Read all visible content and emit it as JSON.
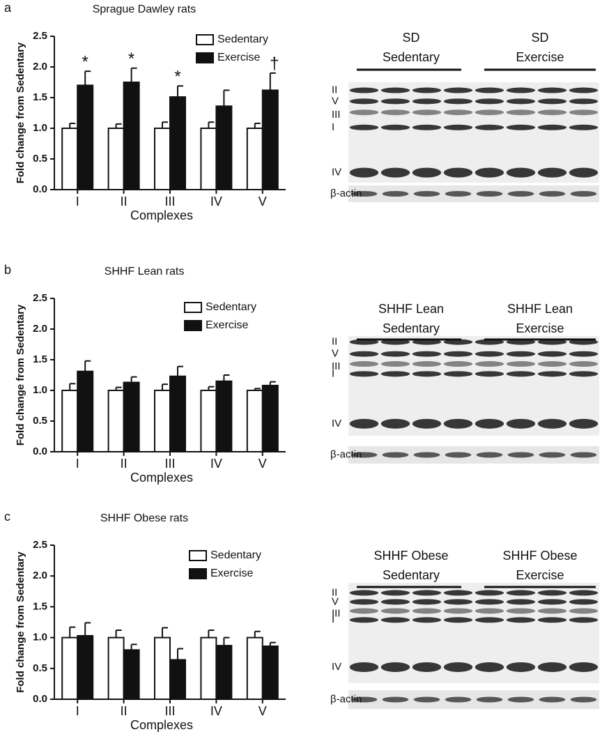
{
  "chart_data": [
    {
      "type": "bar",
      "panel": "a",
      "title": "Sprague Dawley rats",
      "ylabel": "Fold change from Sedentary",
      "xlabel": "Complexes",
      "categories": [
        "I",
        "II",
        "III",
        "IV",
        "V"
      ],
      "series": [
        {
          "name": "Sedentary",
          "color": "#ffffff",
          "values": [
            1.0,
            1.0,
            1.0,
            1.0,
            1.0
          ],
          "errors": [
            0.08,
            0.07,
            0.1,
            0.1,
            0.08
          ]
        },
        {
          "name": "Exercise",
          "color": "#111111",
          "values": [
            1.7,
            1.75,
            1.51,
            1.36,
            1.62
          ],
          "errors": [
            0.23,
            0.23,
            0.18,
            0.26,
            0.28
          ],
          "markers": [
            "*",
            "*",
            "*",
            null,
            "†"
          ]
        }
      ],
      "ylim": [
        0,
        2.5
      ],
      "yticks": [
        {
          "value": 0,
          "label": "0.0"
        },
        0.5,
        {
          "value": 1,
          "label": "1.0"
        },
        1.5,
        {
          "value": 2,
          "label": "2.0"
        },
        2.5
      ],
      "legend": "upper right",
      "blot": {
        "groups": [
          [
            "SD",
            "Sedentary"
          ],
          [
            "SD",
            "Exercise"
          ]
        ],
        "bands": [
          "II",
          "V",
          "III",
          "I",
          "IV"
        ],
        "loading": "β-actin"
      }
    },
    {
      "type": "bar",
      "panel": "b",
      "title": "SHHF Lean rats",
      "ylabel": "Fold change from Sedentary",
      "xlabel": "Complexes",
      "categories": [
        "I",
        "II",
        "III",
        "IV",
        "V"
      ],
      "series": [
        {
          "name": "Sedentary",
          "color": "#ffffff",
          "values": [
            1.0,
            1.0,
            1.0,
            1.0,
            1.0
          ],
          "errors": [
            0.11,
            0.05,
            0.1,
            0.06,
            0.03
          ]
        },
        {
          "name": "Exercise",
          "color": "#111111",
          "values": [
            1.31,
            1.13,
            1.23,
            1.15,
            1.08
          ],
          "errors": [
            0.17,
            0.09,
            0.16,
            0.1,
            0.06
          ]
        }
      ],
      "ylim": [
        0,
        2.5
      ],
      "yticks": [
        {
          "value": 0,
          "label": "0.0"
        },
        0.5,
        {
          "value": 1,
          "label": "1.0"
        },
        1.5,
        {
          "value": 2,
          "label": "2.0"
        },
        2.5
      ],
      "legend": "upper right",
      "blot": {
        "groups": [
          [
            "SHHF Lean",
            "Sedentary"
          ],
          [
            "SHHF Lean",
            "Exercise"
          ]
        ],
        "bands": [
          "II",
          "V",
          "III",
          "I",
          "IV"
        ],
        "loading": "β-actin"
      }
    },
    {
      "type": "bar",
      "panel": "c",
      "title": "SHHF Obese rats",
      "ylabel": "Fold change from Sedentary",
      "xlabel": "Complexes",
      "categories": [
        "I",
        "II",
        "III",
        "IV",
        "V"
      ],
      "series": [
        {
          "name": "Sedentary",
          "color": "#ffffff",
          "values": [
            1.0,
            1.0,
            1.0,
            1.0,
            1.0
          ],
          "errors": [
            0.17,
            0.12,
            0.16,
            0.12,
            0.1
          ]
        },
        {
          "name": "Exercise",
          "color": "#111111",
          "values": [
            1.03,
            0.8,
            0.64,
            0.87,
            0.86
          ],
          "errors": [
            0.21,
            0.09,
            0.18,
            0.13,
            0.06
          ]
        }
      ],
      "ylim": [
        0,
        2.5
      ],
      "yticks": [
        {
          "value": 0,
          "label": "0.0"
        },
        0.5,
        {
          "value": 1,
          "label": "1.0"
        },
        1.5,
        {
          "value": 2,
          "label": "2.0"
        },
        2.5
      ],
      "legend": "upper right",
      "blot": {
        "groups": [
          [
            "SHHF Obese",
            "Sedentary"
          ],
          [
            "SHHF Obese",
            "Exercise"
          ]
        ],
        "bands": [
          "II",
          "V",
          "III",
          "I",
          "IV"
        ],
        "loading": "β-actin"
      }
    }
  ]
}
